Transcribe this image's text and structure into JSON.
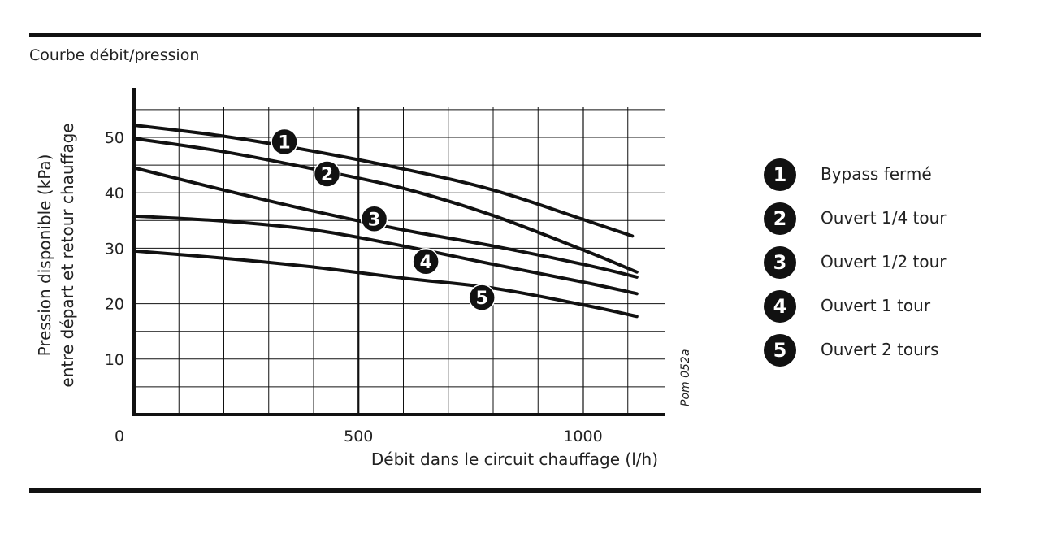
{
  "caption": "Courbe débit/pression",
  "figure_code": "Pom 052a",
  "chart_data": {
    "type": "line",
    "xlabel": "Débit dans le circuit chauffage (l/h)",
    "ylabel_lines": [
      "Pression disponible (kPa)",
      "entre départ et retour chauffage"
    ],
    "xlim": [
      0,
      1180
    ],
    "ylim": [
      0,
      59
    ],
    "x_ticks": [
      0,
      500,
      1000
    ],
    "y_ticks": [
      10,
      20,
      30,
      40,
      50
    ],
    "x_gridlines": [
      100,
      200,
      300,
      400,
      500,
      600,
      700,
      800,
      900,
      1000,
      1100
    ],
    "y_gridlines": [
      5,
      10,
      15,
      20,
      25,
      30,
      35,
      40,
      45,
      50,
      55
    ],
    "grid": true,
    "legend_position": "right",
    "series": [
      {
        "name": "Bypass fermé",
        "marker": "1",
        "x": [
          0,
          200,
          400,
          600,
          800,
          1000,
          1110
        ],
        "y": [
          52.2,
          50.2,
          47.5,
          44.3,
          40.5,
          35.2,
          32.2
        ],
        "label_at": [
          335,
          49.2
        ]
      },
      {
        "name": "Ouvert 1/4 tour",
        "marker": "2",
        "x": [
          0,
          200,
          400,
          600,
          800,
          1000,
          1120
        ],
        "y": [
          49.8,
          47.4,
          44.3,
          40.8,
          35.9,
          29.7,
          25.7
        ],
        "label_at": [
          430,
          43.4
        ]
      },
      {
        "name": "Ouvert 1/2 tour",
        "marker": "3",
        "x": [
          0,
          200,
          400,
          600,
          800,
          1000,
          1120
        ],
        "y": [
          44.5,
          40.5,
          36.7,
          33.3,
          30.4,
          27.1,
          24.8
        ],
        "label_at": [
          535,
          35.3
        ]
      },
      {
        "name": "Ouvert 1 tour",
        "marker": "4",
        "x": [
          0,
          200,
          400,
          600,
          800,
          1000,
          1120
        ],
        "y": [
          35.8,
          34.9,
          33.3,
          30.4,
          27.1,
          23.9,
          21.8
        ],
        "label_at": [
          650,
          27.6
        ]
      },
      {
        "name": "Ouvert 2 tours",
        "marker": "5",
        "x": [
          0,
          200,
          400,
          600,
          800,
          1000,
          1120
        ],
        "y": [
          29.5,
          28.2,
          26.6,
          24.6,
          22.8,
          19.8,
          17.7
        ],
        "label_at": [
          775,
          21.1
        ]
      }
    ]
  }
}
